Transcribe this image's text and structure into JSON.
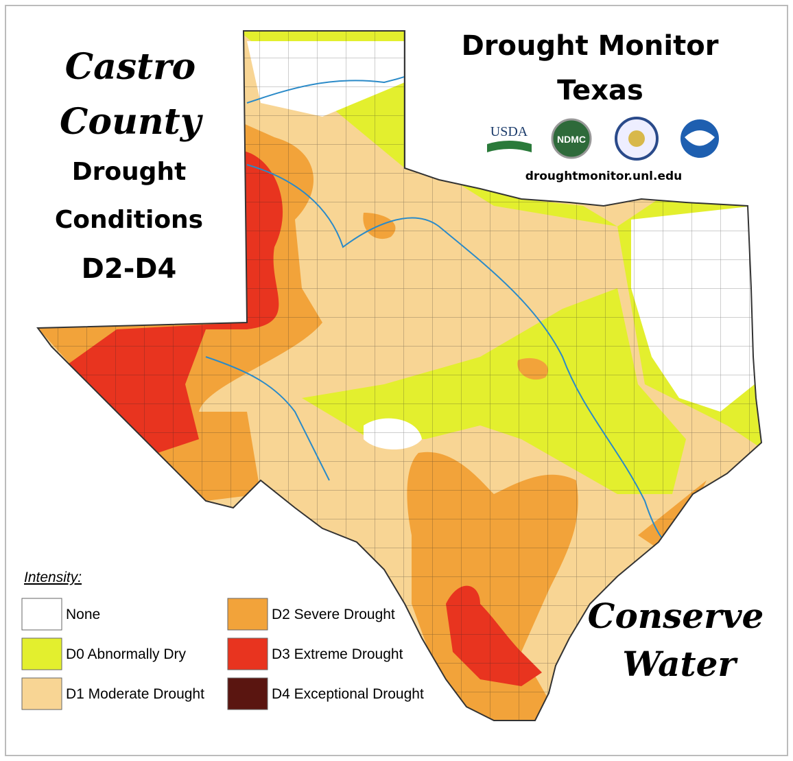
{
  "title": {
    "lines": [
      "Castro",
      "County"
    ]
  },
  "subtitle": {
    "lines": [
      "Drought",
      "Conditions",
      "D2-D4"
    ]
  },
  "header": {
    "lines": [
      "Drought Monitor",
      "Texas"
    ],
    "logos": [
      "USDA",
      "NDMC"
    ],
    "url": "droughtmonitor.unl.edu"
  },
  "legend": {
    "title": "Intensity:",
    "items": [
      {
        "name": "None",
        "color": "#ffffff"
      },
      {
        "name": "D0 Abnormally Dry",
        "color": "#e3ef2e"
      },
      {
        "name": "D1 Moderate Drought",
        "color": "#f8d594"
      },
      {
        "name": "D2 Severe Drought",
        "color": "#f2a33a"
      },
      {
        "name": "D3 Extreme Drought",
        "color": "#e8341f"
      },
      {
        "name": "D4 Exceptional Drought",
        "color": "#5a1510"
      }
    ]
  },
  "slogan": {
    "lines": [
      "Conserve",
      "Water"
    ]
  }
}
